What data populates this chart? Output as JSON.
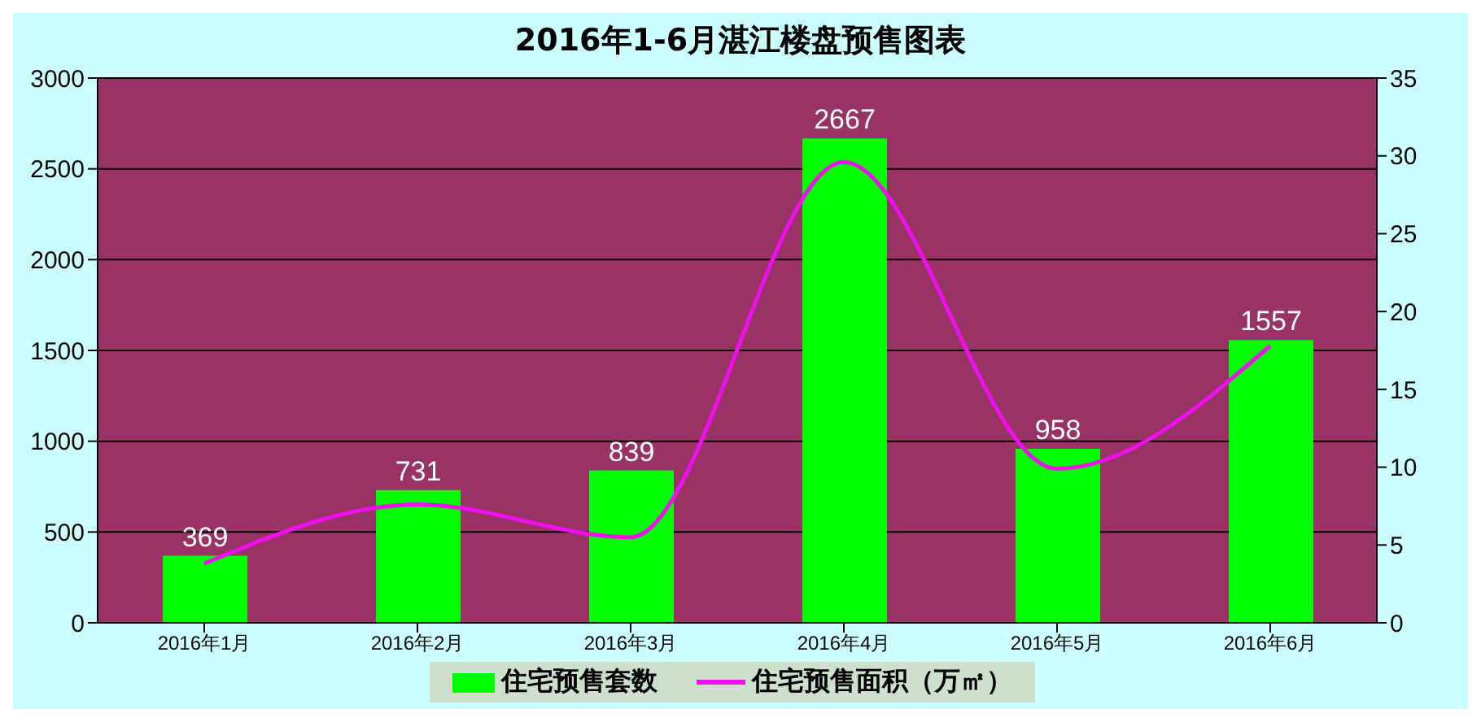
{
  "chart_data": {
    "type": "bar",
    "title": "2016年1-6月湛江楼盘预售图表",
    "categories": [
      "2016年1月",
      "2016年2月",
      "2016年3月",
      "2016年4月",
      "2016年5月",
      "2016年6月"
    ],
    "series": [
      {
        "name": "住宅预售套数",
        "color": "#00ff00",
        "values": [
          369,
          731,
          839,
          2667,
          958,
          1557
        ],
        "value_labels": [
          "369",
          "731",
          "839",
          "2667",
          "958",
          "1557"
        ]
      },
      {
        "name": "住宅预售面积（万㎡）",
        "type": "line",
        "axis": "y2",
        "color": "#ee11ee",
        "values": [
          3.8,
          7.6,
          5.5,
          29.6,
          9.9,
          17.8
        ]
      }
    ],
    "ylim": [
      0,
      3000
    ],
    "yticks": [
      0,
      500,
      1000,
      1500,
      2000,
      2500,
      3000
    ],
    "y2lim": [
      0,
      35
    ],
    "y2ticks": [
      0,
      5,
      10,
      15,
      20,
      25,
      30,
      35
    ],
    "grid": "y",
    "legend": "bottom",
    "marker": "none"
  }
}
